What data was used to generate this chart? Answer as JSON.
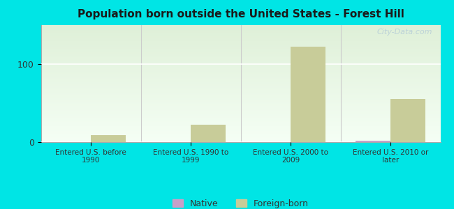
{
  "title": "Population born outside the United States - Forest Hill",
  "categories": [
    "Entered U.S. before\n1990",
    "Entered U.S. 1990 to\n1999",
    "Entered U.S. 2000 to\n2009",
    "Entered U.S. 2010 or\nlater"
  ],
  "native_values": [
    0,
    0,
    0,
    2
  ],
  "foreign_born_values": [
    9,
    22,
    122,
    55
  ],
  "bar_width": 0.35,
  "native_color": "#c8a0c8",
  "foreign_born_color": "#c8cc99",
  "background_outer": "#00e5e5",
  "plot_bg_top": "#dff0d8",
  "plot_bg_bottom": "#f5fff5",
  "title_color": "#1a1a1a",
  "tick_label_color": "#333333",
  "ylim": [
    0,
    150
  ],
  "yticks": [
    0,
    100
  ],
  "grid_color": "#ffffff",
  "watermark": "City-Data.com",
  "legend_native_label": "Native",
  "legend_foreign_label": "Foreign-born"
}
